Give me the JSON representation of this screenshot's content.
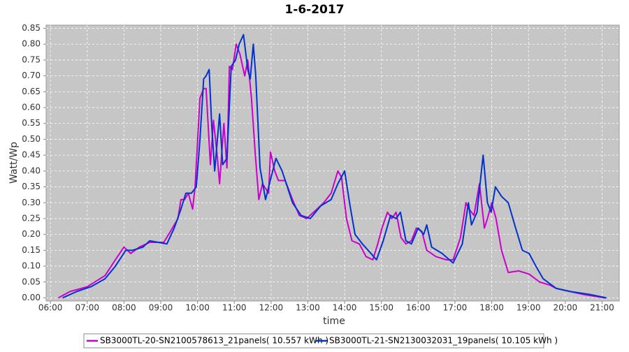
{
  "chart_data": {
    "type": "line",
    "title": "1-6-2017",
    "x_label": "time",
    "y_label": "Watt/Wp",
    "xlim": [
      "05:53",
      "21:28"
    ],
    "xticks": [
      "06:00",
      "07:00",
      "08:00",
      "09:00",
      "10:00",
      "11:00",
      "12:00",
      "13:00",
      "14:00",
      "15:00",
      "16:00",
      "17:00",
      "18:00",
      "19:00",
      "20:00",
      "21:00"
    ],
    "ylim": [
      -0.01,
      0.86
    ],
    "yticks": [
      {
        "value": 0,
        "label": "0.00"
      },
      {
        "value": 0.05,
        "label": "0.05"
      },
      {
        "value": 0.1,
        "label": "0.10"
      },
      {
        "value": 0.15,
        "label": "0.15"
      },
      {
        "value": 0.2,
        "label": "0.20"
      },
      {
        "value": 0.25,
        "label": "0.25"
      },
      {
        "value": 0.3,
        "label": "0.30"
      },
      {
        "value": 0.35,
        "label": "0.35"
      },
      {
        "value": 0.4,
        "label": "0.40"
      },
      {
        "value": 0.45,
        "label": "0.45"
      },
      {
        "value": 0.5,
        "label": "0.50"
      },
      {
        "value": 0.55,
        "label": "0.55"
      },
      {
        "value": 0.6,
        "label": "0.60"
      },
      {
        "value": 0.65,
        "label": "0.65"
      },
      {
        "value": 0.7,
        "label": "0.70"
      },
      {
        "value": 0.75,
        "label": "0.75"
      },
      {
        "value": 0.8,
        "label": "0.80"
      },
      {
        "value": 0.85,
        "label": "0.85"
      }
    ],
    "grid": true,
    "legend": "bottom",
    "series": [
      {
        "name": "SB3000TL-20-SN2100578613_21panels( 10.557 kWh )",
        "color": "#cc00cc",
        "x": [
          "06:13",
          "06:32",
          "07:00",
          "07:29",
          "07:46",
          "08:00",
          "08:11",
          "08:25",
          "08:42",
          "09:05",
          "09:16",
          "09:28",
          "09:33",
          "09:39",
          "09:45",
          "09:52",
          "09:56",
          "10:04",
          "10:10",
          "10:14",
          "10:21",
          "10:26",
          "10:32",
          "10:36",
          "10:43",
          "10:48",
          "10:52",
          "10:57",
          "11:03",
          "11:09",
          "11:17",
          "11:22",
          "11:28",
          "11:34",
          "11:40",
          "11:46",
          "11:56",
          "11:59",
          "12:06",
          "12:12",
          "12:23",
          "12:35",
          "12:46",
          "12:58",
          "13:15",
          "13:26",
          "13:38",
          "13:49",
          "13:55",
          "14:03",
          "14:12",
          "14:24",
          "14:35",
          "14:46",
          "14:54",
          "15:01",
          "15:10",
          "15:17",
          "15:24",
          "15:32",
          "15:40",
          "15:49",
          "15:57",
          "16:06",
          "16:14",
          "16:29",
          "16:46",
          "16:57",
          "17:09",
          "17:18",
          "17:23",
          "17:31",
          "17:40",
          "17:48",
          "17:53",
          "18:00",
          "18:07",
          "18:16",
          "18:27",
          "18:44",
          "19:01",
          "19:18",
          "19:35",
          "19:45",
          "20:08",
          "20:31",
          "21:05"
        ],
        "values": [
          0,
          0.02,
          0.035,
          0.07,
          0.12,
          0.16,
          0.14,
          0.16,
          0.175,
          0.175,
          0.21,
          0.25,
          0.31,
          0.31,
          0.33,
          0.28,
          0.35,
          0.63,
          0.66,
          0.66,
          0.42,
          0.56,
          0.45,
          0.36,
          0.55,
          0.41,
          0.73,
          0.72,
          0.8,
          0.77,
          0.7,
          0.75,
          0.63,
          0.46,
          0.31,
          0.36,
          0.33,
          0.46,
          0.4,
          0.37,
          0.37,
          0.31,
          0.26,
          0.25,
          0.28,
          0.3,
          0.33,
          0.4,
          0.38,
          0.25,
          0.18,
          0.17,
          0.13,
          0.12,
          0.17,
          0.22,
          0.27,
          0.25,
          0.27,
          0.19,
          0.17,
          0.18,
          0.22,
          0.21,
          0.15,
          0.13,
          0.12,
          0.12,
          0.19,
          0.3,
          0.28,
          0.26,
          0.36,
          0.22,
          0.25,
          0.3,
          0.25,
          0.15,
          0.08,
          0.085,
          0.075,
          0.05,
          0.04,
          0.03,
          0.02,
          0.01,
          0
        ]
      },
      {
        "name": "SB3000TL-21-SN2130032031_19panels( 10.105 kWh )",
        "color": "#0033cc",
        "x": [
          "06:20",
          "06:43",
          "07:06",
          "07:29",
          "07:46",
          "08:03",
          "08:14",
          "08:31",
          "08:42",
          "09:10",
          "09:22",
          "09:33",
          "09:41",
          "09:50",
          "09:58",
          "10:04",
          "10:10",
          "10:14",
          "10:19",
          "10:23",
          "10:28",
          "10:36",
          "10:41",
          "10:48",
          "10:55",
          "11:02",
          "11:08",
          "11:15",
          "11:22",
          "11:26",
          "11:31",
          "11:35",
          "11:42",
          "11:51",
          "12:00",
          "12:08",
          "12:18",
          "12:35",
          "12:49",
          "13:04",
          "13:21",
          "13:38",
          "13:49",
          "14:00",
          "14:08",
          "14:17",
          "14:29",
          "14:43",
          "14:52",
          "15:03",
          "15:15",
          "15:24",
          "15:31",
          "15:40",
          "15:49",
          "16:00",
          "16:09",
          "16:14",
          "16:22",
          "16:39",
          "16:57",
          "17:12",
          "17:22",
          "17:27",
          "17:36",
          "17:46",
          "17:53",
          "17:59",
          "18:06",
          "18:16",
          "18:27",
          "18:39",
          "18:50",
          "19:01",
          "19:12",
          "19:24",
          "19:45",
          "20:08",
          "20:42",
          "21:07"
        ],
        "values": [
          0,
          0.02,
          0.035,
          0.06,
          0.1,
          0.15,
          0.15,
          0.16,
          0.18,
          0.17,
          0.22,
          0.28,
          0.33,
          0.33,
          0.35,
          0.5,
          0.69,
          0.7,
          0.72,
          0.55,
          0.4,
          0.58,
          0.42,
          0.44,
          0.73,
          0.75,
          0.8,
          0.83,
          0.72,
          0.69,
          0.8,
          0.7,
          0.41,
          0.31,
          0.38,
          0.44,
          0.4,
          0.3,
          0.26,
          0.25,
          0.29,
          0.31,
          0.36,
          0.4,
          0.3,
          0.2,
          0.17,
          0.14,
          0.12,
          0.18,
          0.26,
          0.25,
          0.27,
          0.18,
          0.17,
          0.22,
          0.2,
          0.23,
          0.16,
          0.14,
          0.11,
          0.17,
          0.3,
          0.23,
          0.27,
          0.45,
          0.3,
          0.27,
          0.35,
          0.32,
          0.3,
          0.22,
          0.15,
          0.14,
          0.1,
          0.06,
          0.03,
          0.02,
          0.01,
          0
        ]
      }
    ]
  }
}
